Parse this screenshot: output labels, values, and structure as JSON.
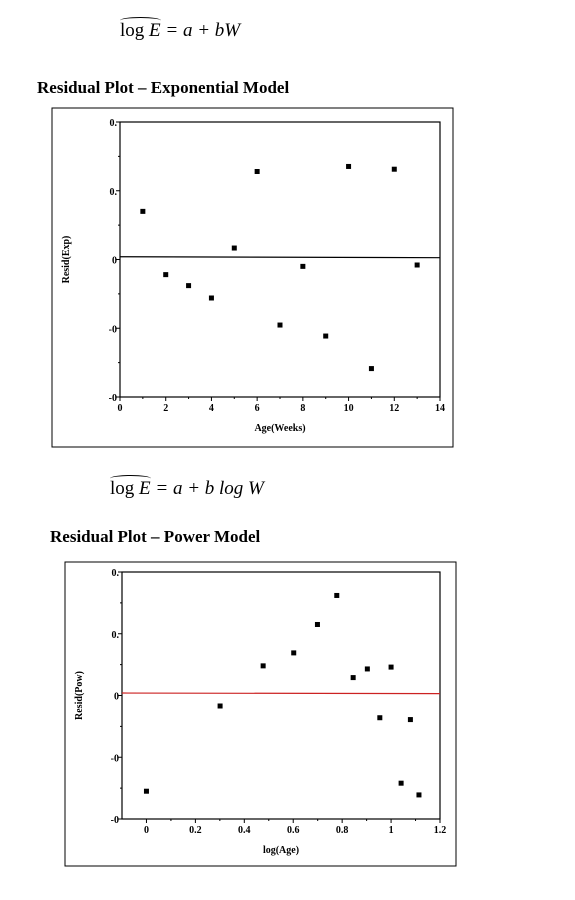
{
  "equations": [
    {
      "lhs": "log",
      "lhs_var": "E",
      "rhs": "= a + bW"
    },
    {
      "lhs": "log",
      "lhs_var": "E",
      "rhs": "= a + b log W"
    }
  ],
  "chart_data": [
    {
      "type": "scatter",
      "title": "Residual Plot – Exponential Model",
      "xlabel": "Age(Weeks)",
      "ylabel": "Resid(Exp)",
      "xlim": [
        0,
        14
      ],
      "xticks": [
        0,
        2,
        4,
        6,
        8,
        10,
        12,
        14
      ],
      "ylim": [
        -0.3,
        0.3
      ],
      "yticks": [
        {
          "v": 0.3,
          "label": "0."
        },
        {
          "v": 0.15,
          "label": "0."
        },
        {
          "v": 0,
          "label": "0"
        },
        {
          "v": -0.15,
          "label": "-0"
        },
        {
          "v": -0.3,
          "label": "-0"
        }
      ],
      "reference_line": {
        "y_start": 0.006,
        "y_end": 0.004,
        "color": "#000000"
      },
      "points": [
        {
          "x": 1,
          "y": 0.105
        },
        {
          "x": 2,
          "y": -0.033
        },
        {
          "x": 3,
          "y": -0.057
        },
        {
          "x": 4,
          "y": -0.084
        },
        {
          "x": 5,
          "y": 0.025
        },
        {
          "x": 6,
          "y": 0.192
        },
        {
          "x": 7,
          "y": -0.143
        },
        {
          "x": 8,
          "y": -0.015
        },
        {
          "x": 9,
          "y": -0.167
        },
        {
          "x": 10,
          "y": 0.203
        },
        {
          "x": 11,
          "y": -0.238
        },
        {
          "x": 12,
          "y": 0.197
        },
        {
          "x": 13,
          "y": -0.012
        }
      ]
    },
    {
      "type": "scatter",
      "title": "Residual Plot – Power Model",
      "xlabel": "log(Age)",
      "ylabel": "Resid(Pow)",
      "xlim": [
        -0.1,
        1.2
      ],
      "xticks": [
        0,
        0.2,
        0.4,
        0.6,
        0.8,
        1,
        1.2
      ],
      "ylim": [
        -0.2,
        0.2
      ],
      "yticks": [
        {
          "v": 0.2,
          "label": "0."
        },
        {
          "v": 0.1,
          "label": "0."
        },
        {
          "v": 0,
          "label": "0"
        },
        {
          "v": -0.1,
          "label": "-0"
        },
        {
          "v": -0.2,
          "label": "-0"
        }
      ],
      "reference_line": {
        "y_start": 0.004,
        "y_end": 0.003,
        "color": "#cc2222"
      },
      "points": [
        {
          "x": 0,
          "y": -0.155
        },
        {
          "x": 0.301,
          "y": -0.017
        },
        {
          "x": 0.477,
          "y": 0.048
        },
        {
          "x": 0.602,
          "y": 0.069
        },
        {
          "x": 0.699,
          "y": 0.115
        },
        {
          "x": 0.778,
          "y": 0.162
        },
        {
          "x": 0.845,
          "y": 0.029
        },
        {
          "x": 0.903,
          "y": 0.043
        },
        {
          "x": 0.954,
          "y": -0.036
        },
        {
          "x": 1.0,
          "y": 0.046
        },
        {
          "x": 1.041,
          "y": -0.142
        },
        {
          "x": 1.079,
          "y": -0.039
        },
        {
          "x": 1.114,
          "y": -0.161
        }
      ]
    }
  ]
}
